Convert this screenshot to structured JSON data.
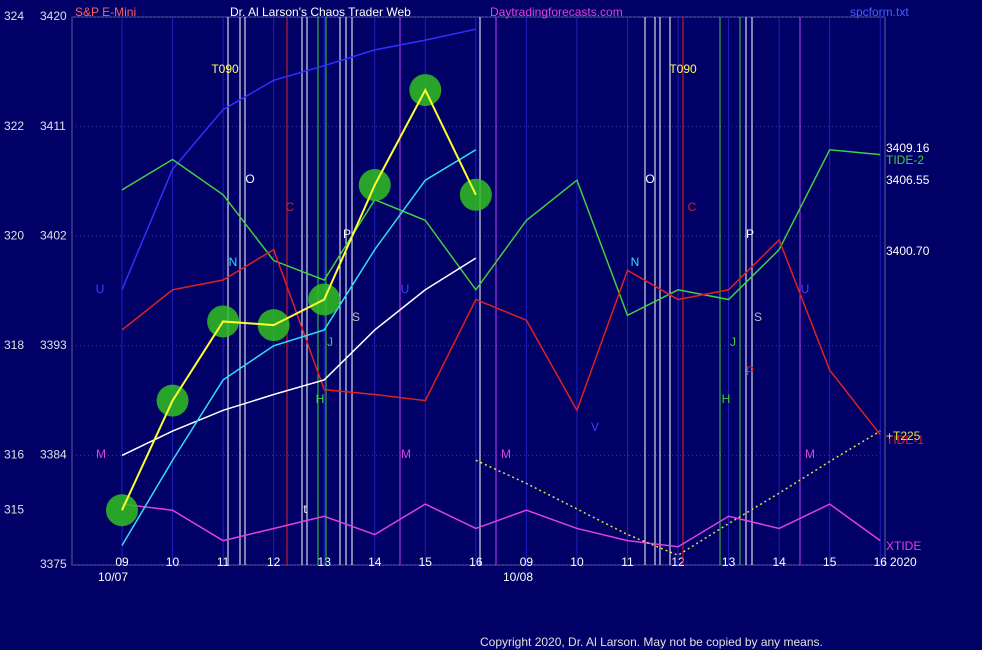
{
  "chart_data": {
    "type": "line",
    "title": "Dr. Al Larson's Chaos Trader Web",
    "symbol": "S&P E-Mini",
    "site": "Daytradingforecasts.com",
    "file": "spcform.txt",
    "copyright": "Copyright 2020, Dr. Al Larson. May not be copied by any means.",
    "dates": [
      "10/07",
      "10/08"
    ],
    "year": "2020",
    "categories": [
      "09",
      "10",
      "11",
      "12",
      "13",
      "14",
      "15",
      "16",
      "09",
      "10",
      "11",
      "12",
      "13",
      "14",
      "15",
      "16"
    ],
    "ylim": [
      3375,
      3420
    ],
    "yticks": [
      3420,
      3411,
      3402,
      3393,
      3384,
      3375
    ],
    "y2lim": [
      314,
      324
    ],
    "y2ticks": [
      324,
      322,
      320,
      318,
      316,
      315
    ],
    "grid": true,
    "levels": [
      3409.16,
      3406.55,
      {
        "value": 3400.7,
        "label": "3400.70"
      }
    ],
    "annotations": [
      "T090",
      "O",
      "C",
      "N",
      "P",
      "S",
      "U",
      "U",
      "J",
      "H",
      "M",
      "M",
      "M",
      "t",
      "T090",
      "O",
      "C",
      "N",
      "P",
      "S",
      "J",
      "H",
      "P",
      "U",
      "V",
      "M"
    ],
    "series": [
      {
        "color": "#3030ff",
        "values": [
          3397.6,
          3407.5,
          3412.4,
          3414.8,
          3416,
          3417.3,
          3418.1,
          3419,
          null,
          null,
          null,
          null,
          null,
          null,
          null,
          null
        ]
      },
      {
        "name": "TIDE-2",
        "color": "#40d040",
        "values": [
          3405.8,
          3408.3,
          3405.4,
          3400,
          3398.4,
          3405,
          3403.3,
          3397.6,
          3403.3,
          3406.6,
          3395.5,
          3397.6,
          3396.8,
          3400.9,
          3409.1,
          3408.7
        ]
      },
      {
        "name": "TIDE-1",
        "color": "#e02020",
        "values": [
          3394.3,
          3397.6,
          3398.4,
          3400.9,
          3389.4,
          3389,
          3388.5,
          3396.8,
          3395.1,
          3387.7,
          3399.2,
          3396.8,
          3397.6,
          3401.7,
          3391,
          3385.7
        ]
      },
      {
        "name": "XTIDE",
        "color": "#e040e0",
        "values": [
          3380,
          3379.5,
          3377,
          3378,
          3379,
          3377.5,
          3380,
          3378,
          3379.5,
          3378,
          3377,
          3376.5,
          3379,
          3378,
          3380,
          3377
        ]
      },
      {
        "name": "+T225",
        "color": "#e0e040",
        "dashed": true,
        "values": [
          null,
          null,
          null,
          null,
          null,
          null,
          null,
          3383.6,
          3381.7,
          3379.6,
          3377.5,
          3375.8,
          3378.4,
          3380.9,
          3383.5,
          3386
        ]
      },
      {
        "color": "#ffffff",
        "values": [
          3384,
          3386,
          3387.7,
          3389,
          3390.2,
          3394.3,
          3397.6,
          3400.2,
          null,
          null,
          null,
          null,
          null,
          null,
          null,
          null
        ]
      },
      {
        "color": "#30e0f0",
        "values": [
          3376.6,
          3383.6,
          3390.2,
          3393,
          3394.3,
          3400.9,
          3406.6,
          3409.1,
          null,
          null,
          null,
          null,
          null,
          null,
          null,
          null
        ]
      },
      {
        "color": "#ffff30",
        "markers": "#30c020",
        "values": [
          3379.5,
          3388.5,
          3395,
          3394.7,
          3396.8,
          3406.2,
          3414,
          3405.4,
          null,
          null,
          null,
          null,
          null,
          null,
          null,
          null
        ]
      }
    ]
  }
}
